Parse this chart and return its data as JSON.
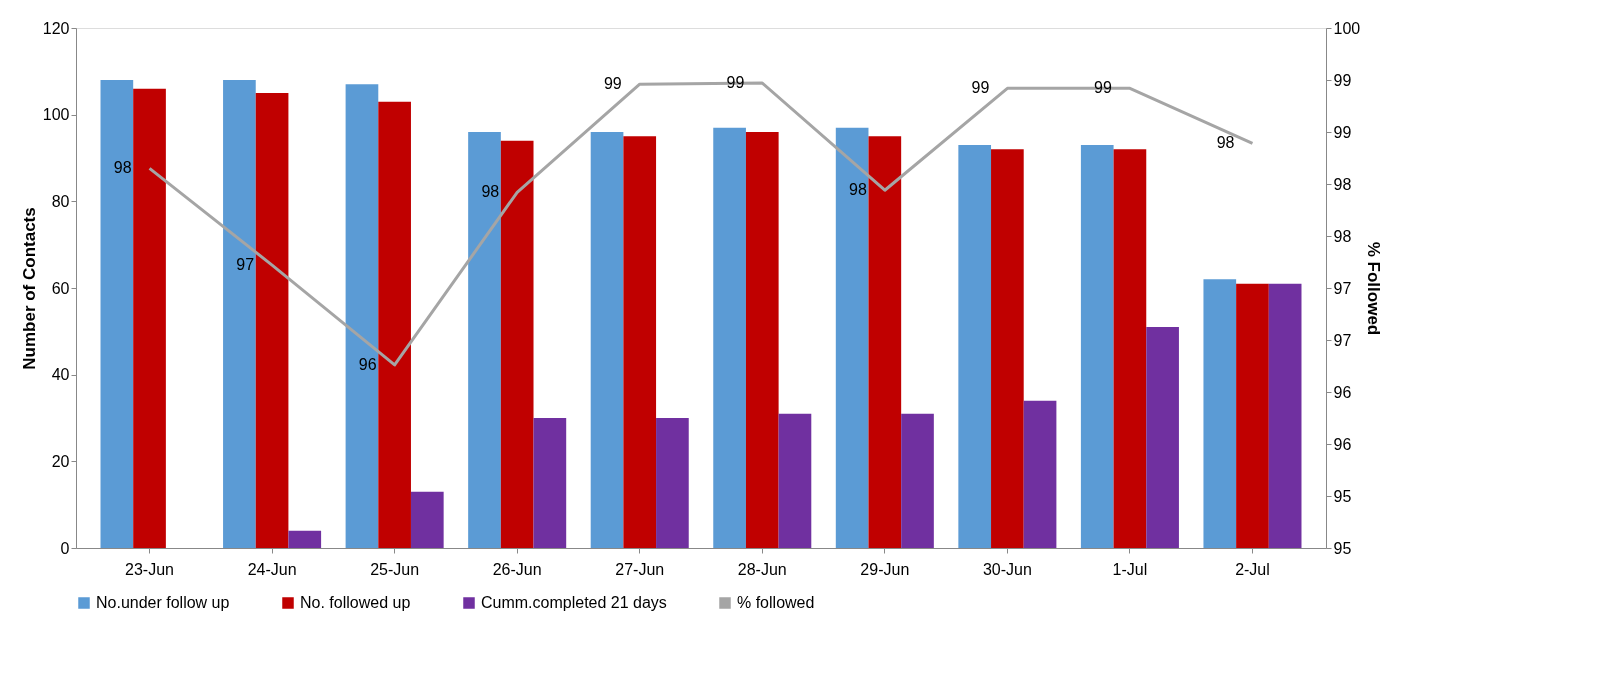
{
  "chart_data": {
    "type": "bar",
    "categories": [
      "23-Jun",
      "24-Jun",
      "25-Jun",
      "26-Jun",
      "27-Jun",
      "28-Jun",
      "29-Jun",
      "30-Jun",
      "1-Jul",
      "2-Jul"
    ],
    "ylabel": "Number of Contacts",
    "y2label": "% Followed",
    "ylim": [
      0,
      120
    ],
    "yticks": [
      0,
      20,
      40,
      60,
      80,
      100,
      120
    ],
    "y2lim": [
      94.5,
      99.5
    ],
    "y2ticks": [
      {
        "value": 94.5,
        "label": "95"
      },
      {
        "value": 95,
        "label": "95"
      },
      {
        "value": 95.5,
        "label": "96"
      },
      {
        "value": 96,
        "label": "96"
      },
      {
        "value": 96.5,
        "label": "97"
      },
      {
        "value": 97,
        "label": "97"
      },
      {
        "value": 97.5,
        "label": "98"
      },
      {
        "value": 98,
        "label": "98"
      },
      {
        "value": 98.5,
        "label": "99"
      },
      {
        "value": 99,
        "label": "99"
      },
      {
        "value": 99.5,
        "label": "100"
      }
    ],
    "series": [
      {
        "name": "No.under follow up",
        "color": "#5b9bd5",
        "values": [
          108,
          108,
          107,
          96,
          96,
          97,
          97,
          93,
          93,
          62
        ]
      },
      {
        "name": "No. followed up",
        "color": "#c00000",
        "values": [
          106,
          105,
          103,
          94,
          95,
          96,
          95,
          92,
          92,
          61
        ]
      },
      {
        "name": "Cumm.completed 21 days",
        "color": "#7030a0",
        "values": [
          null,
          4,
          13,
          30,
          30,
          31,
          31,
          34,
          51,
          61
        ]
      },
      {
        "name": "% followed",
        "type": "line",
        "axis": "y2",
        "color": "#a5a5a5",
        "values": [
          98.15,
          97.22,
          96.26,
          97.92,
          98.96,
          98.97,
          97.94,
          98.92,
          98.92,
          98.39
        ],
        "value_labels": [
          "98",
          "97",
          "96",
          "98",
          "99",
          "99",
          "98",
          "99",
          "99",
          "98"
        ]
      }
    ],
    "legend": "bottom",
    "grid": false
  }
}
